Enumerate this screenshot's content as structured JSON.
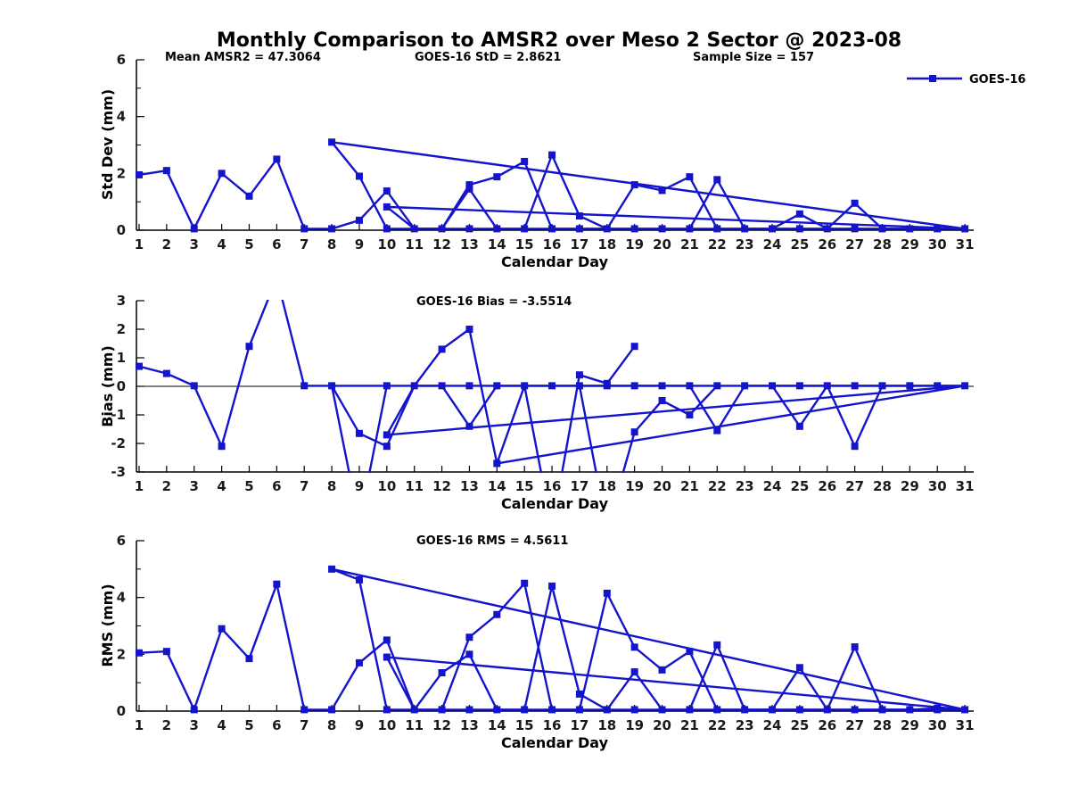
{
  "page": {
    "background": "#ffffff"
  },
  "title": "Monthly Comparison to AMSR2 over Meso 2 Sector @ 2023-08",
  "legend": {
    "label": "GOES-16"
  },
  "colors": {
    "series": "#1414cc",
    "axis": "#000000",
    "tick_label": "#1a1a1a",
    "text": "#000000"
  },
  "x_axis": {
    "label": "Calendar Day",
    "ticks": [
      1,
      2,
      3,
      4,
      5,
      6,
      7,
      8,
      9,
      10,
      11,
      12,
      13,
      14,
      15,
      16,
      17,
      18,
      19,
      20,
      21,
      22,
      23,
      24,
      25,
      26,
      27,
      28,
      29,
      30,
      31
    ]
  },
  "chart_data": [
    {
      "type": "line",
      "name": "std-dev",
      "ylabel": "Std Dev (mm)",
      "ylim": [
        0,
        6
      ],
      "yticks": [
        0,
        2,
        4,
        6
      ],
      "minor_yticks": [
        1,
        3,
        5
      ],
      "zero_line": false,
      "grid": false,
      "legend_position": "top-right-outside",
      "annotations": [
        "Mean AMSR2 = 47.3064",
        "GOES-16 StD = 2.8621",
        "Sample Size = 157"
      ],
      "series_name": "GOES-16",
      "segments": [
        [
          [
            1,
            1.95
          ],
          [
            2,
            2.1
          ],
          [
            3,
            0.05
          ],
          [
            4,
            2.0
          ],
          [
            5,
            1.2
          ],
          [
            6,
            2.5
          ],
          [
            7,
            0.05
          ],
          [
            8,
            0.05
          ],
          [
            9,
            0.35
          ],
          [
            10,
            1.38
          ],
          [
            11,
            0.05
          ],
          [
            12,
            0.05
          ],
          [
            13,
            1.45
          ],
          [
            14,
            0.05
          ],
          [
            15,
            0.05
          ],
          [
            16,
            2.65
          ],
          [
            17,
            0.5
          ],
          [
            18,
            0.05
          ],
          [
            19,
            1.6
          ],
          [
            20,
            1.4
          ],
          [
            21,
            1.88
          ],
          [
            22,
            0.05
          ],
          [
            23,
            0.05
          ],
          [
            24,
            0.05
          ],
          [
            25,
            0.57
          ],
          [
            26,
            0.05
          ],
          [
            27,
            0.95
          ],
          [
            28,
            0.05
          ],
          [
            29,
            0.05
          ],
          [
            30,
            0.05
          ],
          [
            31,
            0.05
          ]
        ],
        [
          [
            31,
            0.05
          ],
          [
            8,
            3.1
          ],
          [
            9,
            1.9
          ],
          [
            10,
            0.05
          ],
          [
            11,
            0.05
          ],
          [
            12,
            0.05
          ],
          [
            13,
            1.6
          ],
          [
            14,
            1.88
          ],
          [
            15,
            2.42
          ],
          [
            16,
            0.05
          ],
          [
            17,
            0.05
          ],
          [
            18,
            0.05
          ],
          [
            19,
            0.05
          ],
          [
            20,
            0.05
          ],
          [
            21,
            0.05
          ],
          [
            22,
            1.78
          ],
          [
            23,
            0.05
          ],
          [
            24,
            0.05
          ],
          [
            25,
            0.05
          ],
          [
            26,
            0.05
          ],
          [
            27,
            0.05
          ],
          [
            28,
            0.05
          ],
          [
            29,
            0.05
          ],
          [
            30,
            0.05
          ],
          [
            31,
            0.05
          ]
        ],
        [
          [
            31,
            0.05
          ],
          [
            10,
            0.82
          ],
          [
            11,
            0.05
          ],
          [
            12,
            0.05
          ],
          [
            13,
            0.05
          ],
          [
            14,
            0.05
          ],
          [
            15,
            0.05
          ],
          [
            16,
            0.05
          ],
          [
            17,
            0.05
          ],
          [
            18,
            0.05
          ],
          [
            19,
            0.05
          ],
          [
            20,
            0.05
          ],
          [
            21,
            0.05
          ],
          [
            22,
            0.05
          ],
          [
            23,
            0.05
          ],
          [
            24,
            0.05
          ],
          [
            25,
            0.05
          ],
          [
            26,
            0.05
          ],
          [
            27,
            0.05
          ],
          [
            28,
            0.05
          ],
          [
            29,
            0.05
          ],
          [
            30,
            0.05
          ],
          [
            31,
            0.05
          ]
        ]
      ]
    },
    {
      "type": "line",
      "name": "bias",
      "ylabel": "Bias (mm)",
      "ylim": [
        -3,
        3
      ],
      "yticks": [
        3,
        2,
        1,
        0,
        -1,
        -2,
        -3
      ],
      "minor_yticks": [],
      "zero_line": true,
      "grid": false,
      "annotations": [
        "GOES-16 Bias = -3.5514"
      ],
      "series_name": "GOES-16",
      "segments": [
        [
          [
            1,
            0.7
          ],
          [
            2,
            0.45
          ],
          [
            3,
            0.02
          ],
          [
            4,
            -2.1
          ],
          [
            5,
            1.4
          ],
          [
            6,
            3.8
          ],
          [
            7,
            0.02
          ],
          [
            8,
            0.02
          ],
          [
            9,
            -1.65
          ],
          [
            10,
            -2.1
          ],
          [
            11,
            0.02
          ],
          [
            12,
            1.3
          ],
          [
            13,
            2.0
          ],
          [
            14,
            -2.7
          ],
          [
            15,
            0.02
          ],
          [
            16,
            -5.0
          ],
          [
            17,
            0.4
          ],
          [
            18,
            0.1
          ],
          [
            19,
            1.4
          ]
        ],
        [
          [
            31,
            0.02
          ],
          [
            8,
            0.02
          ],
          [
            9,
            -4.8
          ],
          [
            10,
            0.02
          ],
          [
            11,
            0.02
          ],
          [
            12,
            0.02
          ],
          [
            13,
            0.02
          ],
          [
            14,
            0.02
          ],
          [
            15,
            0.02
          ],
          [
            16,
            0.02
          ],
          [
            17,
            0.02
          ],
          [
            18,
            -5.0
          ],
          [
            19,
            -1.6
          ],
          [
            20,
            -0.5
          ],
          [
            21,
            -1.0
          ],
          [
            22,
            0.02
          ],
          [
            23,
            0.02
          ],
          [
            24,
            0.02
          ],
          [
            25,
            -1.4
          ],
          [
            26,
            0.02
          ],
          [
            27,
            -2.1
          ],
          [
            28,
            0.02
          ],
          [
            29,
            0.02
          ],
          [
            30,
            0.02
          ],
          [
            31,
            0.02
          ]
        ],
        [
          [
            31,
            0.02
          ],
          [
            10,
            -1.7
          ],
          [
            11,
            0.02
          ],
          [
            12,
            0.02
          ],
          [
            13,
            -1.4
          ],
          [
            14,
            0.02
          ],
          [
            15,
            0.02
          ],
          [
            16,
            0.02
          ],
          [
            17,
            0.02
          ],
          [
            18,
            0.02
          ],
          [
            19,
            0.02
          ],
          [
            20,
            0.02
          ],
          [
            21,
            0.02
          ],
          [
            22,
            -1.55
          ],
          [
            23,
            0.02
          ],
          [
            24,
            0.02
          ],
          [
            25,
            0.02
          ],
          [
            26,
            0.02
          ],
          [
            27,
            0.02
          ],
          [
            28,
            0.02
          ],
          [
            29,
            0.02
          ],
          [
            30,
            0.02
          ],
          [
            31,
            0.02
          ]
        ],
        [
          [
            14,
            -2.7
          ],
          [
            31,
            0.02
          ]
        ]
      ]
    },
    {
      "type": "line",
      "name": "rms",
      "ylabel": "RMS (mm)",
      "ylim": [
        0,
        6
      ],
      "yticks": [
        0,
        2,
        4,
        6
      ],
      "minor_yticks": [
        1,
        3,
        5
      ],
      "zero_line": false,
      "grid": false,
      "annotations": [
        "GOES-16 RMS = 4.5611"
      ],
      "series_name": "GOES-16",
      "segments": [
        [
          [
            1,
            2.05
          ],
          [
            2,
            2.1
          ],
          [
            3,
            0.05
          ],
          [
            4,
            2.9
          ],
          [
            5,
            1.85
          ],
          [
            6,
            4.47
          ],
          [
            7,
            0.05
          ],
          [
            8,
            0.05
          ],
          [
            9,
            1.7
          ],
          [
            10,
            2.5
          ],
          [
            11,
            0.05
          ],
          [
            12,
            0.05
          ],
          [
            13,
            2.6
          ],
          [
            14,
            3.4
          ],
          [
            15,
            4.5
          ],
          [
            16,
            0.05
          ],
          [
            17,
            0.05
          ],
          [
            18,
            4.15
          ],
          [
            19,
            2.25
          ],
          [
            20,
            1.45
          ],
          [
            21,
            2.1
          ],
          [
            22,
            0.05
          ],
          [
            23,
            0.05
          ],
          [
            24,
            0.05
          ],
          [
            25,
            1.53
          ],
          [
            26,
            0.05
          ],
          [
            27,
            2.26
          ],
          [
            28,
            0.05
          ],
          [
            29,
            0.05
          ],
          [
            30,
            0.1
          ],
          [
            31,
            0.05
          ]
        ],
        [
          [
            31,
            0.05
          ],
          [
            8,
            5.0
          ],
          [
            9,
            4.62
          ],
          [
            10,
            0.05
          ],
          [
            11,
            0.05
          ],
          [
            12,
            1.35
          ],
          [
            13,
            2.0
          ],
          [
            14,
            0.05
          ],
          [
            15,
            0.05
          ],
          [
            16,
            4.4
          ],
          [
            17,
            0.6
          ],
          [
            18,
            0.05
          ],
          [
            19,
            1.38
          ],
          [
            20,
            0.05
          ],
          [
            21,
            0.05
          ],
          [
            22,
            2.33
          ],
          [
            23,
            0.05
          ],
          [
            24,
            0.05
          ],
          [
            25,
            0.05
          ],
          [
            26,
            0.05
          ],
          [
            27,
            0.05
          ],
          [
            28,
            0.05
          ],
          [
            29,
            0.05
          ],
          [
            30,
            0.05
          ],
          [
            31,
            0.05
          ]
        ],
        [
          [
            31,
            0.05
          ],
          [
            10,
            1.9
          ],
          [
            11,
            0.05
          ],
          [
            12,
            0.05
          ],
          [
            13,
            0.05
          ],
          [
            14,
            0.05
          ],
          [
            15,
            0.05
          ],
          [
            16,
            0.05
          ],
          [
            17,
            0.05
          ],
          [
            18,
            0.05
          ],
          [
            19,
            0.05
          ],
          [
            20,
            0.05
          ],
          [
            21,
            0.05
          ],
          [
            22,
            0.05
          ],
          [
            23,
            0.05
          ],
          [
            24,
            0.05
          ],
          [
            25,
            0.05
          ],
          [
            26,
            0.05
          ],
          [
            27,
            0.05
          ],
          [
            28,
            0.05
          ],
          [
            29,
            0.05
          ],
          [
            30,
            0.05
          ],
          [
            31,
            0.05
          ]
        ]
      ]
    }
  ]
}
